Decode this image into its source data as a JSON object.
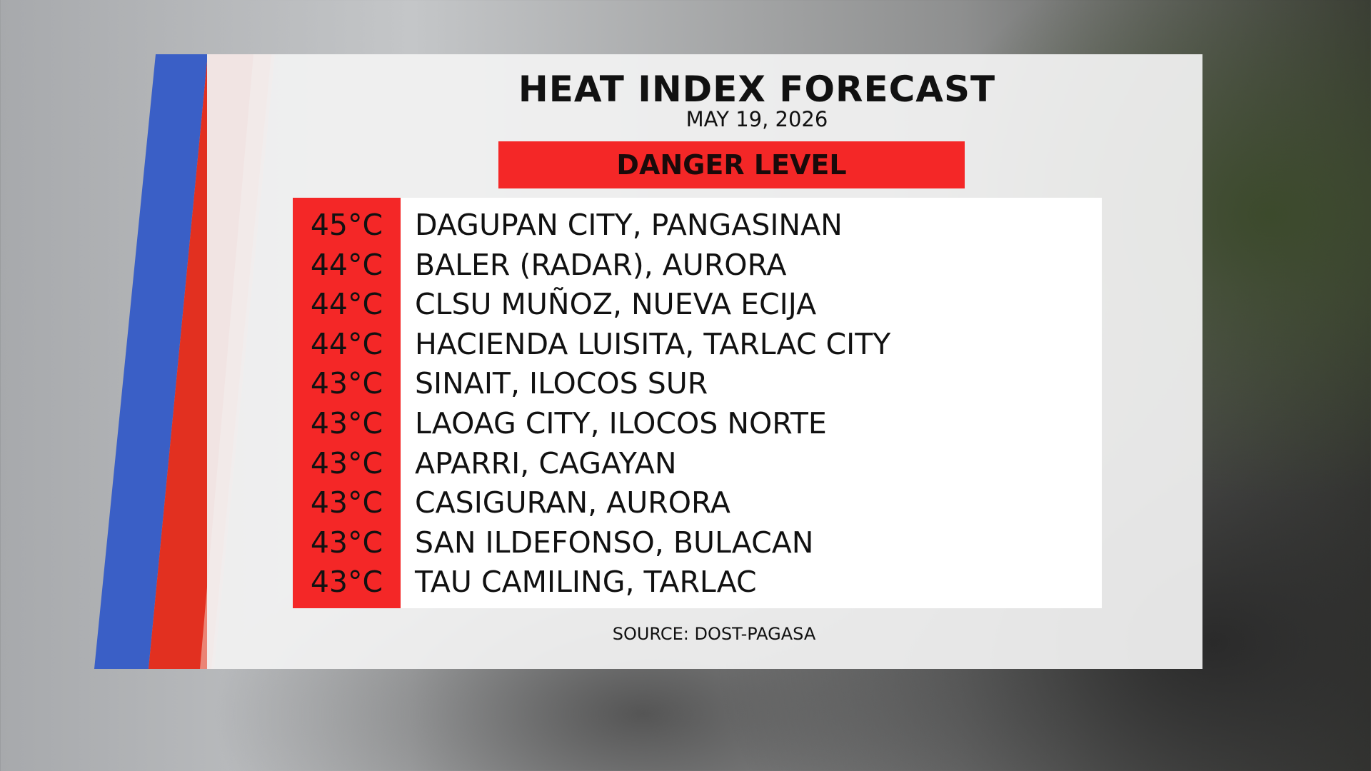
{
  "header": {
    "title": "HEAT INDEX FORECAST",
    "date": "MAY 19, 2026",
    "level": "DANGER LEVEL"
  },
  "table": {
    "rows": [
      [
        "45°C",
        "DAGUPAN CITY, PANGASINAN"
      ],
      [
        "44°C",
        "BALER (RADAR), AURORA"
      ],
      [
        "44°C",
        "CLSU MUÑOZ, NUEVA ECIJA"
      ],
      [
        "44°C",
        "HACIENDA LUISITA, TARLAC CITY"
      ],
      [
        "43°C",
        "SINAIT, ILOCOS SUR"
      ],
      [
        "43°C",
        "LAOAG CITY, ILOCOS NORTE"
      ],
      [
        "43°C",
        "APARRI, CAGAYAN"
      ],
      [
        "43°C",
        "CASIGURAN, AURORA"
      ],
      [
        "43°C",
        "SAN ILDEFONSO, BULACAN"
      ],
      [
        "43°C",
        "TAU CAMILING, TARLAC"
      ]
    ]
  },
  "footer": {
    "source": "SOURCE: DOST-PAGASA"
  }
}
